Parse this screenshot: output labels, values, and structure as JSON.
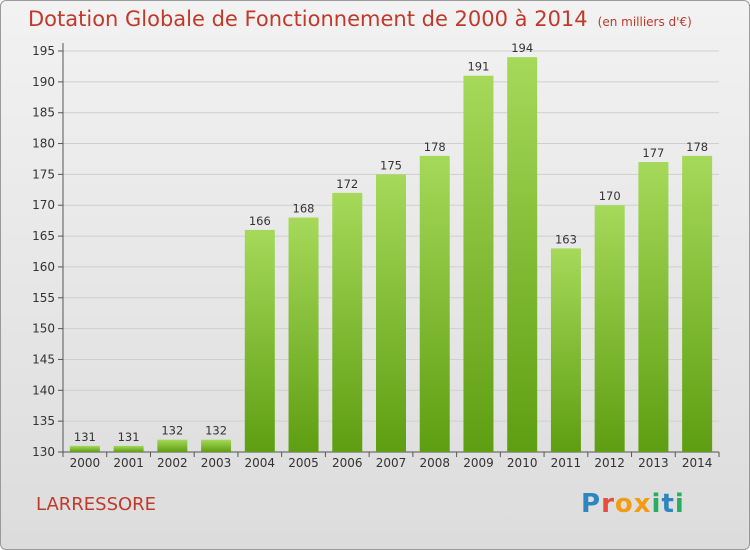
{
  "chart_data": {
    "type": "bar",
    "title": "Dotation Globale de Fonctionnement de 2000 à 2014",
    "unit_note": "(en milliers d'€)",
    "categories": [
      "2000",
      "2001",
      "2002",
      "2003",
      "2004",
      "2005",
      "2006",
      "2007",
      "2008",
      "2009",
      "2010",
      "2011",
      "2012",
      "2013",
      "2014"
    ],
    "values": [
      131,
      131,
      132,
      132,
      166,
      168,
      172,
      175,
      178,
      191,
      194,
      163,
      170,
      177,
      178
    ],
    "ylim": [
      130,
      195
    ],
    "yticks": [
      130,
      135,
      140,
      145,
      150,
      155,
      160,
      165,
      170,
      175,
      180,
      185,
      190,
      195
    ],
    "grid": true,
    "xlabel": "",
    "ylabel": "",
    "colors": {
      "bar_light": "#a6d95a",
      "bar_dark": "#5e9e12",
      "grid": "#cfcfcf",
      "title": "#c0392b"
    }
  },
  "footer": {
    "commune": "LARRESSORE",
    "logo": "Proxiti"
  }
}
